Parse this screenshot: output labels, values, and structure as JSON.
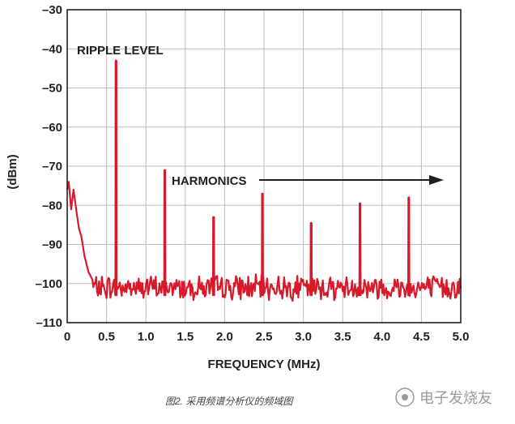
{
  "chart_data": {
    "type": "line",
    "title": "",
    "xlabel": "FREQUENCY (MHz)",
    "ylabel": "(dBm)",
    "xlim": [
      0,
      5.0
    ],
    "ylim": [
      -110,
      -30
    ],
    "x_ticks": [
      0,
      0.5,
      1.0,
      1.5,
      2.0,
      2.5,
      3.0,
      3.5,
      4.0,
      4.5,
      5.0
    ],
    "x_tick_labels": [
      "0",
      "0.5",
      "1.0",
      "1.5",
      "2.0",
      "2.5",
      "3.0",
      "3.5",
      "4.0",
      "4.5",
      "5.0"
    ],
    "y_ticks": [
      -30,
      -40,
      -50,
      -60,
      -70,
      -80,
      -90,
      -100,
      -110
    ],
    "y_tick_labels": [
      "–30",
      "–40",
      "–50",
      "–60",
      "–70",
      "–80",
      "–90",
      "–100",
      "–110"
    ],
    "grid": true,
    "line_color": "#d7192a",
    "noise_floor_dbm": -101,
    "low_freq_rolloff": [
      {
        "x": 0.0,
        "y": -76
      },
      {
        "x": 0.02,
        "y": -74
      },
      {
        "x": 0.05,
        "y": -81
      },
      {
        "x": 0.08,
        "y": -76
      },
      {
        "x": 0.12,
        "y": -82
      },
      {
        "x": 0.15,
        "y": -86
      },
      {
        "x": 0.18,
        "y": -88
      },
      {
        "x": 0.22,
        "y": -93
      },
      {
        "x": 0.27,
        "y": -97
      },
      {
        "x": 0.32,
        "y": -99
      }
    ],
    "peaks": [
      {
        "x": 0.62,
        "y": -43
      },
      {
        "x": 1.24,
        "y": -71
      },
      {
        "x": 1.86,
        "y": -83
      },
      {
        "x": 2.48,
        "y": -77
      },
      {
        "x": 3.1,
        "y": -84.5
      },
      {
        "x": 3.72,
        "y": -79.5
      },
      {
        "x": 4.34,
        "y": -78
      }
    ],
    "annotations": [
      {
        "text": "RIPPLE LEVEL"
      },
      {
        "text": "HARMONICS"
      }
    ]
  },
  "caption": "图2. 采用频谱分析仪的频域图",
  "watermark": "电子发烧友"
}
